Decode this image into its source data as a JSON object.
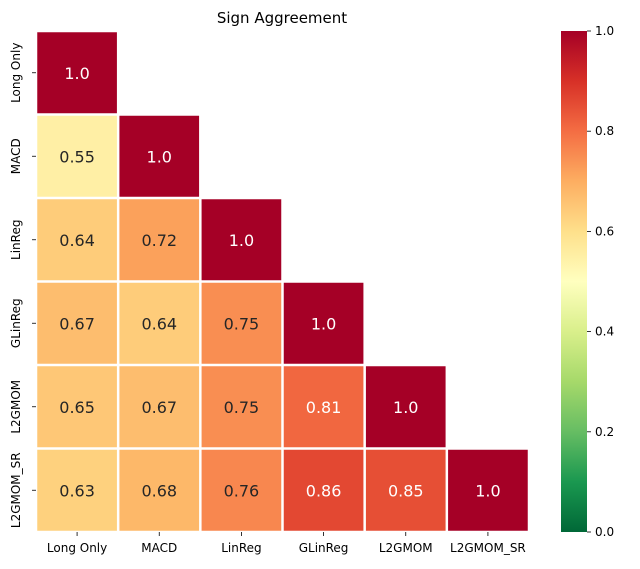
{
  "chart_data": {
    "type": "heatmap",
    "title": "Sign Aggreement",
    "row_labels": [
      "Long Only",
      "MACD",
      "LinReg",
      "GLinReg",
      "L2GMOM",
      "L2GMOM_SR"
    ],
    "col_labels": [
      "Long Only",
      "MACD",
      "LinReg",
      "GLinReg",
      "L2GMOM",
      "L2GMOM_SR"
    ],
    "lower_triangle_only": true,
    "values": [
      [
        1.0
      ],
      [
        0.55,
        1.0
      ],
      [
        0.64,
        0.72,
        1.0
      ],
      [
        0.67,
        0.64,
        0.75,
        1.0
      ],
      [
        0.65,
        0.67,
        0.75,
        0.81,
        1.0
      ],
      [
        0.63,
        0.68,
        0.76,
        0.86,
        0.85,
        1.0
      ]
    ],
    "value_format": "2 significant",
    "colormap": "RdYlGn_r",
    "vmin": 0.0,
    "vmax": 1.0,
    "colorbar_ticks": [
      "0.0",
      "0.2",
      "0.4",
      "0.6",
      "0.8",
      "1.0"
    ],
    "grid_line_color": "#ffffff"
  }
}
